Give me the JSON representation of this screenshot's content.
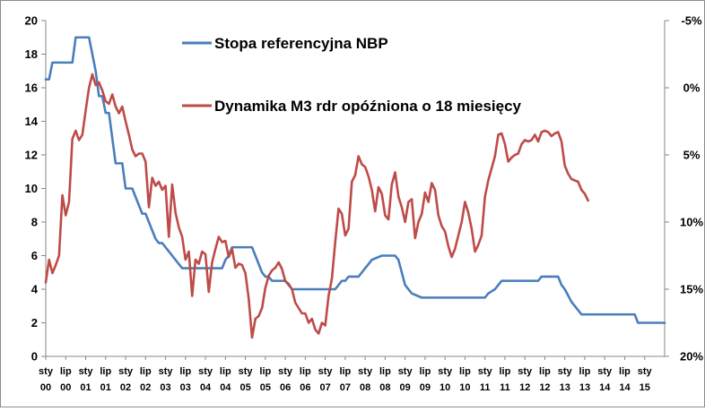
{
  "chart_data": {
    "type": "line",
    "title": "",
    "left_axis": {
      "min": 0,
      "max": 20,
      "ticks": [
        "0",
        "2",
        "4",
        "6",
        "8",
        "10",
        "12",
        "14",
        "16",
        "18",
        "20"
      ]
    },
    "right_axis": {
      "inverted": true,
      "min": -5,
      "max": 20,
      "ticks": [
        "-5%",
        "0%",
        "5%",
        "10%",
        "15%",
        "20%"
      ]
    },
    "x_axis": {
      "start": "2000-01",
      "end": "2015-07",
      "labels": [
        {
          "top": "sty",
          "bottom": "00"
        },
        {
          "top": "lip",
          "bottom": "00"
        },
        {
          "top": "sty",
          "bottom": "01"
        },
        {
          "top": "lip",
          "bottom": "01"
        },
        {
          "top": "sty",
          "bottom": "02"
        },
        {
          "top": "lip",
          "bottom": "02"
        },
        {
          "top": "sty",
          "bottom": "03"
        },
        {
          "top": "lip",
          "bottom": "03"
        },
        {
          "top": "sty",
          "bottom": "04"
        },
        {
          "top": "lip",
          "bottom": "04"
        },
        {
          "top": "sty",
          "bottom": "05"
        },
        {
          "top": "lip",
          "bottom": "05"
        },
        {
          "top": "sty",
          "bottom": "06"
        },
        {
          "top": "lip",
          "bottom": "06"
        },
        {
          "top": "sty",
          "bottom": "07"
        },
        {
          "top": "lip",
          "bottom": "07"
        },
        {
          "top": "sty",
          "bottom": "08"
        },
        {
          "top": "lip",
          "bottom": "08"
        },
        {
          "top": "sty",
          "bottom": "09"
        },
        {
          "top": "lip",
          "bottom": "09"
        },
        {
          "top": "sty",
          "bottom": "10"
        },
        {
          "top": "lip",
          "bottom": "10"
        },
        {
          "top": "sty",
          "bottom": "11"
        },
        {
          "top": "lip",
          "bottom": "11"
        },
        {
          "top": "sty",
          "bottom": "12"
        },
        {
          "top": "lip",
          "bottom": "12"
        },
        {
          "top": "sty",
          "bottom": "13"
        },
        {
          "top": "lip",
          "bottom": "13"
        },
        {
          "top": "sty",
          "bottom": "14"
        },
        {
          "top": "lip",
          "bottom": "14"
        },
        {
          "top": "sty",
          "bottom": "15"
        }
      ]
    },
    "grid": false,
    "legend_position": "top-center",
    "series": [
      {
        "name": "Stopa referencyjna NBP",
        "axis": "left",
        "color": "#4a7ebb",
        "points": [
          [
            "2000-01",
            16.5
          ],
          [
            "2000-02",
            16.5
          ],
          [
            "2000-03",
            17.5
          ],
          [
            "2000-06",
            17.5
          ],
          [
            "2000-09",
            17.5
          ],
          [
            "2000-10",
            19.0
          ],
          [
            "2001-02",
            19.0
          ],
          [
            "2001-03",
            18.0
          ],
          [
            "2001-04",
            17.0
          ],
          [
            "2001-05",
            15.5
          ],
          [
            "2001-06",
            15.5
          ],
          [
            "2001-07",
            14.5
          ],
          [
            "2001-08",
            14.5
          ],
          [
            "2001-09",
            13.0
          ],
          [
            "2001-10",
            11.5
          ],
          [
            "2001-11",
            11.5
          ],
          [
            "2001-12",
            11.5
          ],
          [
            "2002-01",
            10.0
          ],
          [
            "2002-03",
            10.0
          ],
          [
            "2002-04",
            9.5
          ],
          [
            "2002-05",
            9.0
          ],
          [
            "2002-06",
            8.5
          ],
          [
            "2002-07",
            8.5
          ],
          [
            "2002-08",
            8.0
          ],
          [
            "2002-09",
            7.5
          ],
          [
            "2002-10",
            7.0
          ],
          [
            "2002-11",
            6.75
          ],
          [
            "2002-12",
            6.75
          ],
          [
            "2003-01",
            6.5
          ],
          [
            "2003-02",
            6.25
          ],
          [
            "2003-03",
            6.0
          ],
          [
            "2003-04",
            5.75
          ],
          [
            "2003-05",
            5.5
          ],
          [
            "2003-06",
            5.25
          ],
          [
            "2004-06",
            5.25
          ],
          [
            "2004-07",
            5.75
          ],
          [
            "2004-08",
            6.0
          ],
          [
            "2004-09",
            6.5
          ],
          [
            "2005-03",
            6.5
          ],
          [
            "2005-04",
            6.0
          ],
          [
            "2005-05",
            5.5
          ],
          [
            "2005-06",
            5.0
          ],
          [
            "2005-07",
            4.75
          ],
          [
            "2005-08",
            4.75
          ],
          [
            "2005-09",
            4.5
          ],
          [
            "2006-01",
            4.5
          ],
          [
            "2006-02",
            4.25
          ],
          [
            "2006-03",
            4.0
          ],
          [
            "2007-04",
            4.0
          ],
          [
            "2007-05",
            4.25
          ],
          [
            "2007-06",
            4.5
          ],
          [
            "2007-07",
            4.5
          ],
          [
            "2007-08",
            4.75
          ],
          [
            "2007-11",
            4.75
          ],
          [
            "2007-12",
            5.0
          ],
          [
            "2008-01",
            5.25
          ],
          [
            "2008-02",
            5.5
          ],
          [
            "2008-03",
            5.75
          ],
          [
            "2008-06",
            6.0
          ],
          [
            "2008-10",
            6.0
          ],
          [
            "2008-11",
            5.75
          ],
          [
            "2008-12",
            5.0
          ],
          [
            "2009-01",
            4.25
          ],
          [
            "2009-02",
            4.0
          ],
          [
            "2009-03",
            3.75
          ],
          [
            "2009-06",
            3.5
          ],
          [
            "2011-01",
            3.5
          ],
          [
            "2011-02",
            3.75
          ],
          [
            "2011-04",
            4.0
          ],
          [
            "2011-05",
            4.25
          ],
          [
            "2011-06",
            4.5
          ],
          [
            "2012-05",
            4.5
          ],
          [
            "2012-06",
            4.75
          ],
          [
            "2012-11",
            4.75
          ],
          [
            "2012-12",
            4.25
          ],
          [
            "2013-01",
            4.0
          ],
          [
            "2013-03",
            3.25
          ],
          [
            "2013-05",
            2.75
          ],
          [
            "2013-06",
            2.5
          ],
          [
            "2014-10",
            2.5
          ],
          [
            "2014-11",
            2.0
          ],
          [
            "2015-07",
            2.0
          ]
        ]
      },
      {
        "name": "Dynamika M3 rdr opóźniona  o 18 miesięcy",
        "axis": "right",
        "color": "#be4b48",
        "points": [
          [
            "2000-01",
            14.5
          ],
          [
            "2000-02",
            12.8
          ],
          [
            "2000-03",
            13.8
          ],
          [
            "2000-04",
            13.2
          ],
          [
            "2000-05",
            12.5
          ],
          [
            "2000-06",
            8.0
          ],
          [
            "2000-07",
            9.5
          ],
          [
            "2000-08",
            8.5
          ],
          [
            "2000-09",
            3.8
          ],
          [
            "2000-10",
            3.2
          ],
          [
            "2000-11",
            3.9
          ],
          [
            "2000-12",
            3.5
          ],
          [
            "2001-01",
            1.7
          ],
          [
            "2001-02",
            0.0
          ],
          [
            "2001-03",
            -1.0
          ],
          [
            "2001-04",
            -0.2
          ],
          [
            "2001-05",
            -0.4
          ],
          [
            "2001-06",
            0.2
          ],
          [
            "2001-07",
            1.0
          ],
          [
            "2001-08",
            1.2
          ],
          [
            "2001-09",
            0.5
          ],
          [
            "2001-10",
            1.4
          ],
          [
            "2001-11",
            1.9
          ],
          [
            "2001-12",
            1.4
          ],
          [
            "2002-01",
            2.5
          ],
          [
            "2002-02",
            3.5
          ],
          [
            "2002-03",
            4.6
          ],
          [
            "2002-04",
            5.1
          ],
          [
            "2002-05",
            4.9
          ],
          [
            "2002-06",
            4.9
          ],
          [
            "2002-07",
            5.5
          ],
          [
            "2002-08",
            8.9
          ],
          [
            "2002-09",
            6.7
          ],
          [
            "2002-10",
            7.3
          ],
          [
            "2002-11",
            7.0
          ],
          [
            "2002-12",
            7.6
          ],
          [
            "2003-01",
            7.3
          ],
          [
            "2003-02",
            11.1
          ],
          [
            "2003-03",
            7.2
          ],
          [
            "2003-04",
            9.3
          ],
          [
            "2003-05",
            10.4
          ],
          [
            "2003-06",
            11.1
          ],
          [
            "2003-07",
            12.8
          ],
          [
            "2003-08",
            12.2
          ],
          [
            "2003-09",
            15.5
          ],
          [
            "2003-10",
            12.8
          ],
          [
            "2003-11",
            13.1
          ],
          [
            "2003-12",
            12.2
          ],
          [
            "2004-01",
            12.4
          ],
          [
            "2004-02",
            15.2
          ],
          [
            "2004-03",
            13.0
          ],
          [
            "2004-04",
            12.0
          ],
          [
            "2004-05",
            11.1
          ],
          [
            "2004-06",
            11.5
          ],
          [
            "2004-07",
            11.4
          ],
          [
            "2004-08",
            12.6
          ],
          [
            "2004-09",
            12.0
          ],
          [
            "2004-10",
            13.4
          ],
          [
            "2004-11",
            13.1
          ],
          [
            "2004-12",
            13.2
          ],
          [
            "2005-01",
            13.8
          ],
          [
            "2005-02",
            15.7
          ],
          [
            "2005-03",
            18.6
          ],
          [
            "2005-04",
            17.2
          ],
          [
            "2005-05",
            17.0
          ],
          [
            "2005-06",
            16.4
          ],
          [
            "2005-07",
            14.9
          ],
          [
            "2005-08",
            14.0
          ],
          [
            "2005-09",
            13.6
          ],
          [
            "2005-10",
            13.4
          ],
          [
            "2005-11",
            13.0
          ],
          [
            "2005-12",
            13.5
          ],
          [
            "2006-01",
            14.4
          ],
          [
            "2006-02",
            14.6
          ],
          [
            "2006-03",
            15.0
          ],
          [
            "2006-04",
            16.0
          ],
          [
            "2006-05",
            16.4
          ],
          [
            "2006-06",
            16.8
          ],
          [
            "2006-07",
            16.8
          ],
          [
            "2006-08",
            17.5
          ],
          [
            "2006-09",
            17.2
          ],
          [
            "2006-10",
            18.0
          ],
          [
            "2006-11",
            18.3
          ],
          [
            "2006-12",
            17.5
          ],
          [
            "2007-01",
            17.7
          ],
          [
            "2007-02",
            15.5
          ],
          [
            "2007-03",
            14.2
          ],
          [
            "2007-04",
            11.5
          ],
          [
            "2007-05",
            9.0
          ],
          [
            "2007-06",
            9.4
          ],
          [
            "2007-07",
            11.0
          ],
          [
            "2007-08",
            10.5
          ],
          [
            "2007-09",
            7.0
          ],
          [
            "2007-10",
            6.5
          ],
          [
            "2007-11",
            5.1
          ],
          [
            "2007-12",
            5.7
          ],
          [
            "2008-01",
            5.9
          ],
          [
            "2008-02",
            6.6
          ],
          [
            "2008-03",
            7.6
          ],
          [
            "2008-04",
            9.2
          ],
          [
            "2008-05",
            7.4
          ],
          [
            "2008-06",
            7.9
          ],
          [
            "2008-07",
            9.5
          ],
          [
            "2008-08",
            9.8
          ],
          [
            "2008-09",
            7.2
          ],
          [
            "2008-10",
            6.3
          ],
          [
            "2008-11",
            8.1
          ],
          [
            "2008-12",
            8.9
          ],
          [
            "2009-01",
            10.0
          ],
          [
            "2009-02",
            8.5
          ],
          [
            "2009-03",
            8.3
          ],
          [
            "2009-04",
            11.2
          ],
          [
            "2009-05",
            10.0
          ],
          [
            "2009-06",
            9.4
          ],
          [
            "2009-07",
            7.8
          ],
          [
            "2009-08",
            8.5
          ],
          [
            "2009-09",
            7.1
          ],
          [
            "2009-10",
            7.6
          ],
          [
            "2009-11",
            9.5
          ],
          [
            "2009-12",
            10.3
          ],
          [
            "2010-01",
            10.7
          ],
          [
            "2010-02",
            11.8
          ],
          [
            "2010-03",
            12.6
          ],
          [
            "2010-04",
            12.0
          ],
          [
            "2010-05",
            11.0
          ],
          [
            "2010-06",
            10.0
          ],
          [
            "2010-07",
            8.5
          ],
          [
            "2010-08",
            9.3
          ],
          [
            "2010-09",
            10.5
          ],
          [
            "2010-10",
            12.2
          ],
          [
            "2010-11",
            11.7
          ],
          [
            "2010-12",
            11.0
          ],
          [
            "2011-01",
            8.1
          ],
          [
            "2011-02",
            6.9
          ],
          [
            "2011-03",
            6.0
          ],
          [
            "2011-04",
            5.1
          ],
          [
            "2011-05",
            3.5
          ],
          [
            "2011-06",
            3.4
          ],
          [
            "2011-07",
            4.2
          ],
          [
            "2011-08",
            5.5
          ],
          [
            "2011-09",
            5.2
          ],
          [
            "2011-10",
            5.0
          ],
          [
            "2011-11",
            4.9
          ],
          [
            "2011-12",
            4.2
          ],
          [
            "2012-01",
            3.9
          ],
          [
            "2012-02",
            4.0
          ],
          [
            "2012-03",
            3.9
          ],
          [
            "2012-04",
            3.5
          ],
          [
            "2012-05",
            4.0
          ],
          [
            "2012-06",
            3.3
          ],
          [
            "2012-07",
            3.2
          ],
          [
            "2012-08",
            3.3
          ],
          [
            "2012-09",
            3.6
          ],
          [
            "2012-10",
            3.4
          ],
          [
            "2012-11",
            3.3
          ],
          [
            "2012-12",
            4.0
          ],
          [
            "2013-01",
            5.8
          ],
          [
            "2013-02",
            6.4
          ],
          [
            "2013-03",
            6.8
          ],
          [
            "2013-04",
            6.9
          ],
          [
            "2013-05",
            7.0
          ],
          [
            "2013-06",
            7.6
          ],
          [
            "2013-07",
            7.9
          ],
          [
            "2013-08",
            8.4
          ]
        ]
      }
    ]
  }
}
